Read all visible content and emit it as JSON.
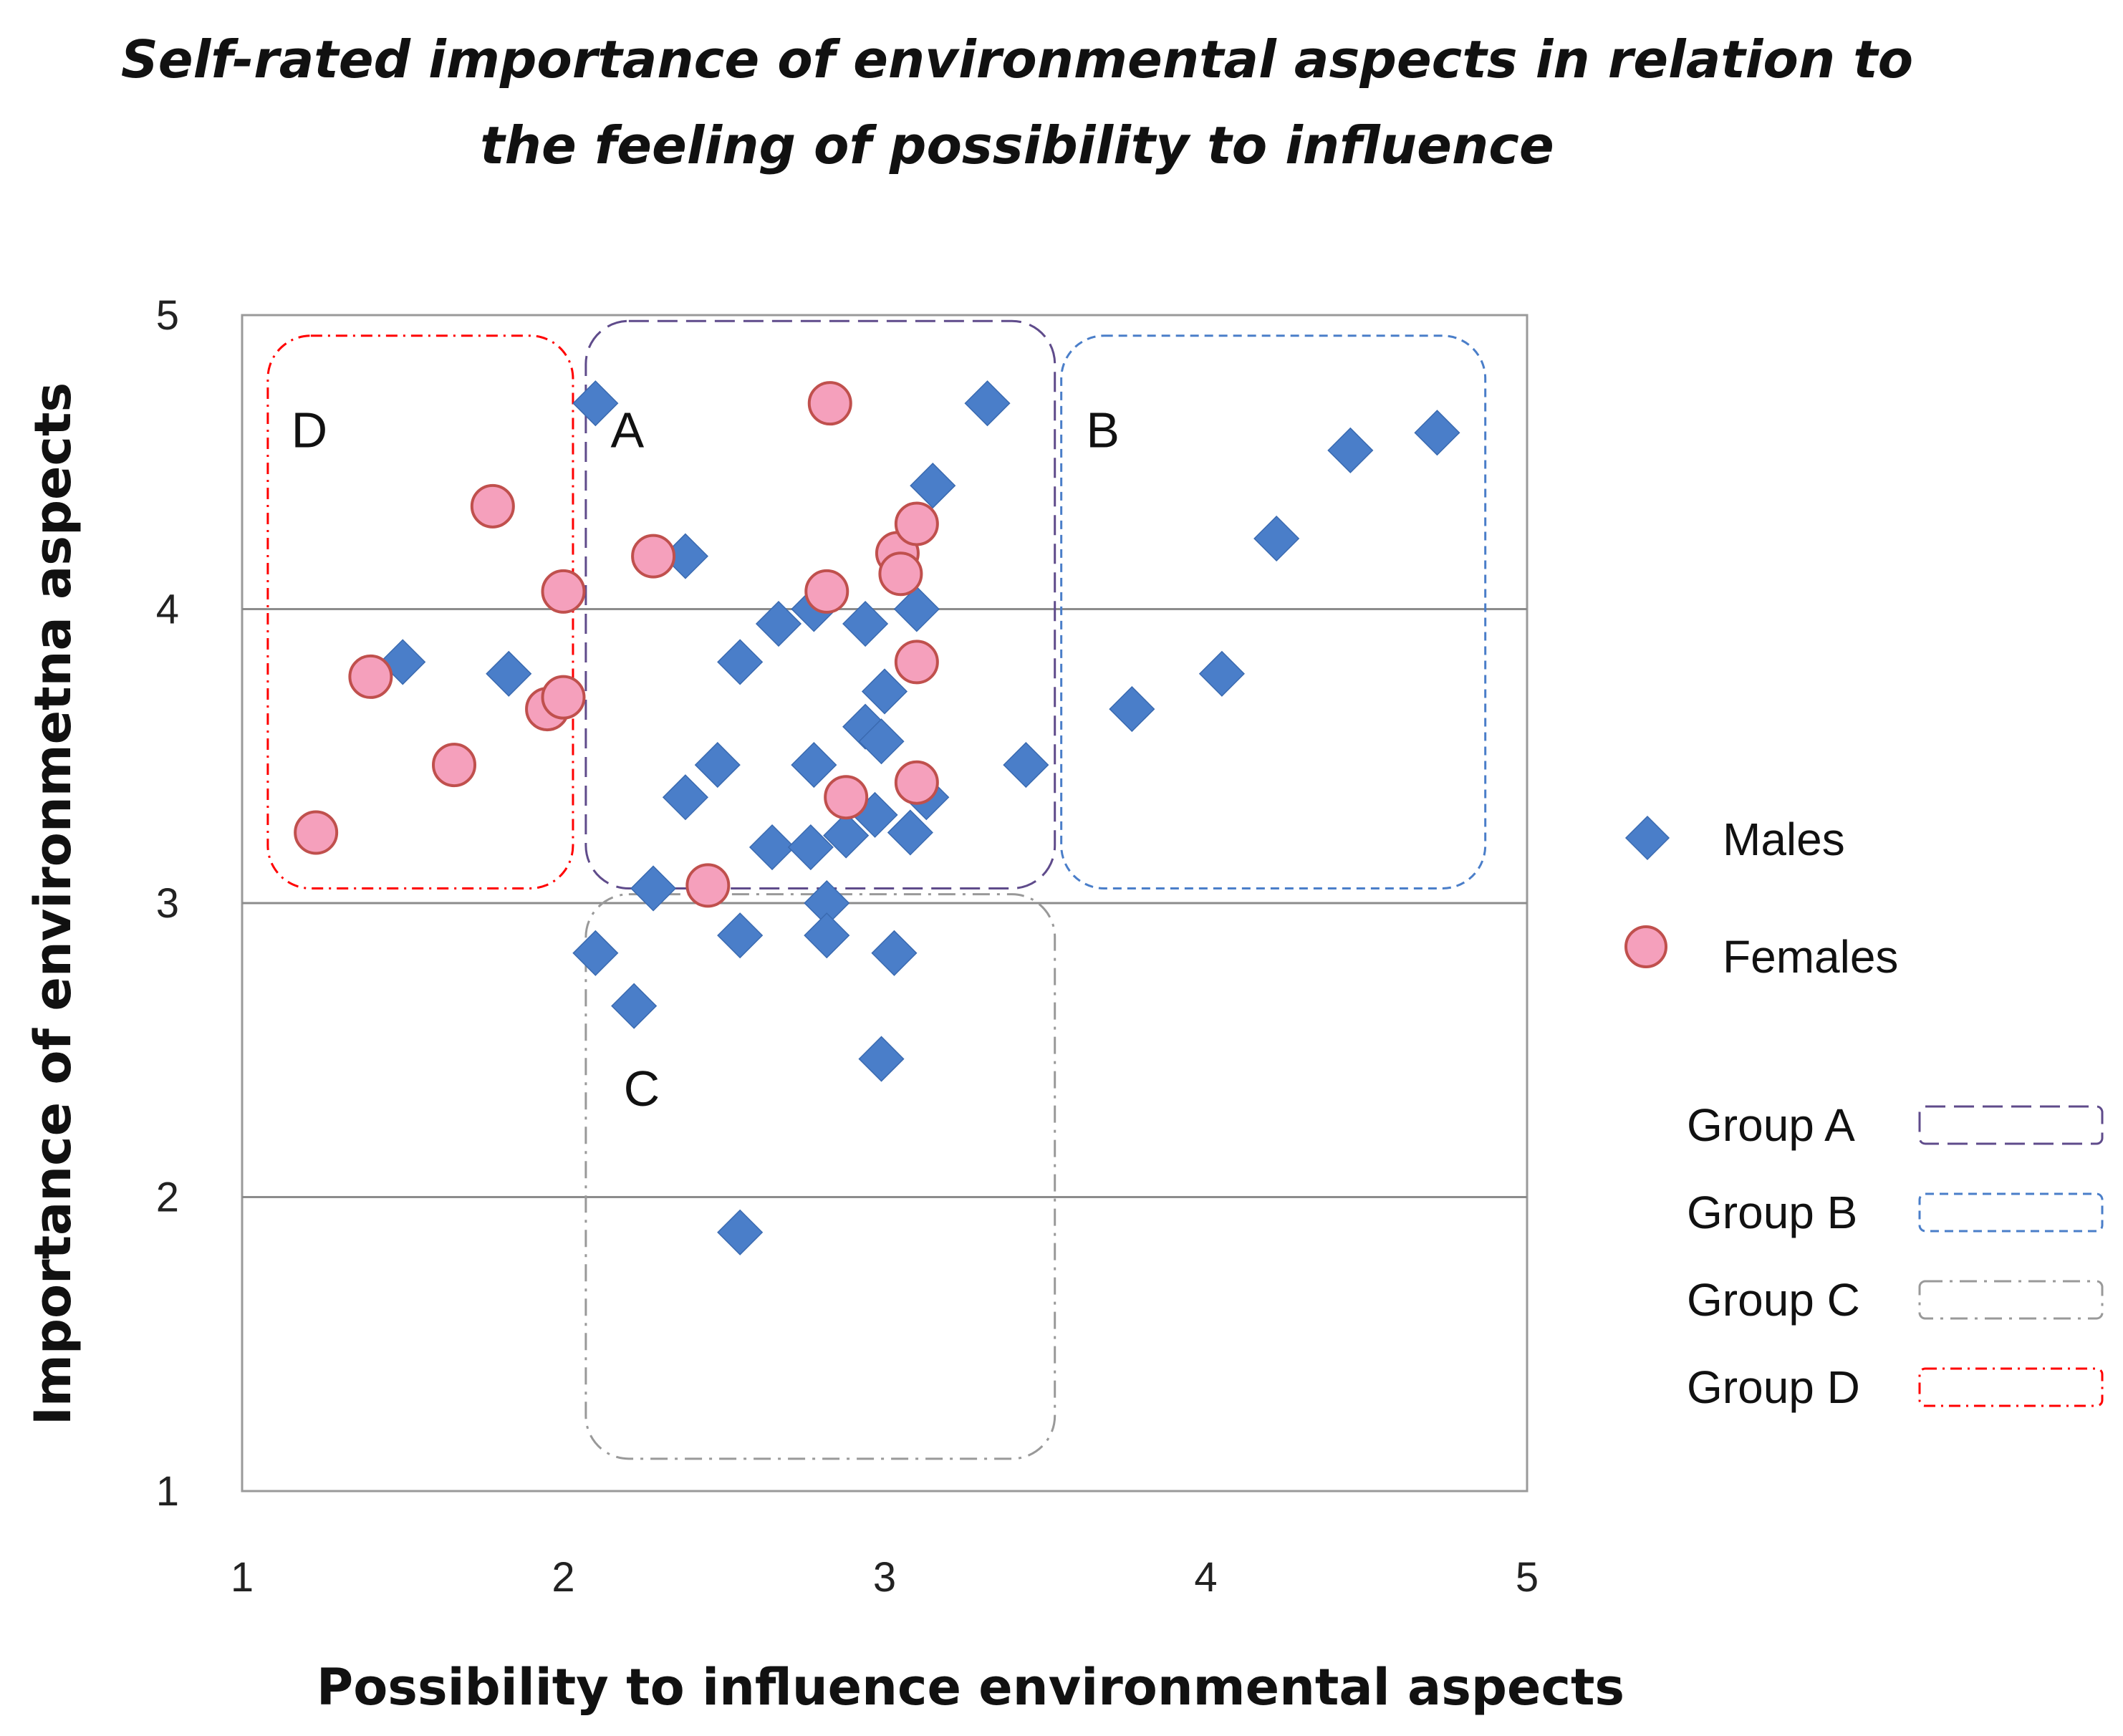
{
  "chart_data": {
    "type": "scatter",
    "title_lines": [
      "Self-rated importance of environmental aspects in relation to",
      "the feeling of possibility to influence"
    ],
    "xlabel": "Possibility to influence environmental aspects",
    "ylabel": "Importance of environmetna aspects",
    "xlim": [
      1,
      5
    ],
    "ylim": [
      1,
      5
    ],
    "xticks": [
      "1",
      "2",
      "3",
      "4",
      "5"
    ],
    "yticks": [
      "1",
      "2",
      "3",
      "4",
      "5"
    ],
    "grid": "horizontal",
    "legend_position": "right",
    "series": [
      {
        "name": "Males",
        "marker": "diamond",
        "color": "#4A7EC9",
        "points": [
          [
            2.1,
            4.7
          ],
          [
            1.5,
            3.82
          ],
          [
            1.83,
            3.78
          ],
          [
            2.38,
            4.18
          ],
          [
            2.28,
            3.05
          ],
          [
            2.1,
            2.83
          ],
          [
            2.22,
            2.65
          ],
          [
            2.55,
            3.82
          ],
          [
            2.48,
            3.47
          ],
          [
            2.38,
            3.36
          ],
          [
            2.55,
            2.89
          ],
          [
            2.55,
            1.88
          ],
          [
            2.65,
            3.19
          ],
          [
            2.67,
            3.95
          ],
          [
            2.77,
            3.19
          ],
          [
            2.78,
            3.47
          ],
          [
            2.78,
            4.0
          ],
          [
            2.82,
            3.0
          ],
          [
            2.82,
            2.89
          ],
          [
            2.88,
            3.23
          ],
          [
            2.94,
            3.95
          ],
          [
            2.94,
            3.6
          ],
          [
            2.97,
            3.3
          ],
          [
            2.99,
            3.55
          ],
          [
            3.0,
            3.72
          ],
          [
            2.99,
            2.47
          ],
          [
            3.03,
            2.83
          ],
          [
            3.08,
            3.24
          ],
          [
            3.1,
            4.0
          ],
          [
            3.13,
            3.36
          ],
          [
            3.15,
            4.42
          ],
          [
            3.32,
            4.7
          ],
          [
            3.44,
            3.47
          ],
          [
            3.77,
            3.66
          ],
          [
            4.05,
            3.78
          ],
          [
            4.22,
            4.24
          ],
          [
            4.45,
            4.54
          ],
          [
            4.72,
            4.6
          ]
        ]
      },
      {
        "name": "Females",
        "marker": "circle",
        "color": "#F5A0BC",
        "stroke": "#C0504D",
        "points": [
          [
            1.23,
            3.24
          ],
          [
            1.4,
            3.77
          ],
          [
            1.66,
            3.47
          ],
          [
            1.78,
            4.35
          ],
          [
            1.95,
            3.66
          ],
          [
            2.0,
            3.7
          ],
          [
            2.0,
            4.06
          ],
          [
            2.28,
            4.18
          ],
          [
            2.45,
            3.06
          ],
          [
            2.83,
            4.7
          ],
          [
            2.82,
            4.06
          ],
          [
            2.88,
            3.36
          ],
          [
            3.04,
            4.19
          ],
          [
            3.05,
            4.12
          ],
          [
            3.1,
            4.29
          ],
          [
            3.1,
            3.82
          ],
          [
            3.1,
            3.41
          ]
        ]
      }
    ],
    "groups": [
      {
        "letter": "D",
        "label": "Group D",
        "color": "#FF0000",
        "dash": "dash-dot",
        "x_range": [
          1.08,
          2.03
        ],
        "y_range": [
          3.05,
          4.93
        ]
      },
      {
        "letter": "A",
        "label": "Group A",
        "color": "#5F4B8B",
        "dash": "long-dash",
        "x_range": [
          2.07,
          3.53
        ],
        "y_range": [
          3.05,
          4.98
        ]
      },
      {
        "letter": "B",
        "label": "Group B",
        "color": "#4A7EC9",
        "dash": "dash",
        "x_range": [
          3.55,
          4.87
        ],
        "y_range": [
          3.05,
          4.93
        ]
      },
      {
        "letter": "C",
        "label": "Group C",
        "color": "#999999",
        "dash": "dash-dot-long",
        "x_range": [
          2.07,
          3.53
        ],
        "y_range": [
          1.11,
          3.03
        ]
      }
    ]
  }
}
